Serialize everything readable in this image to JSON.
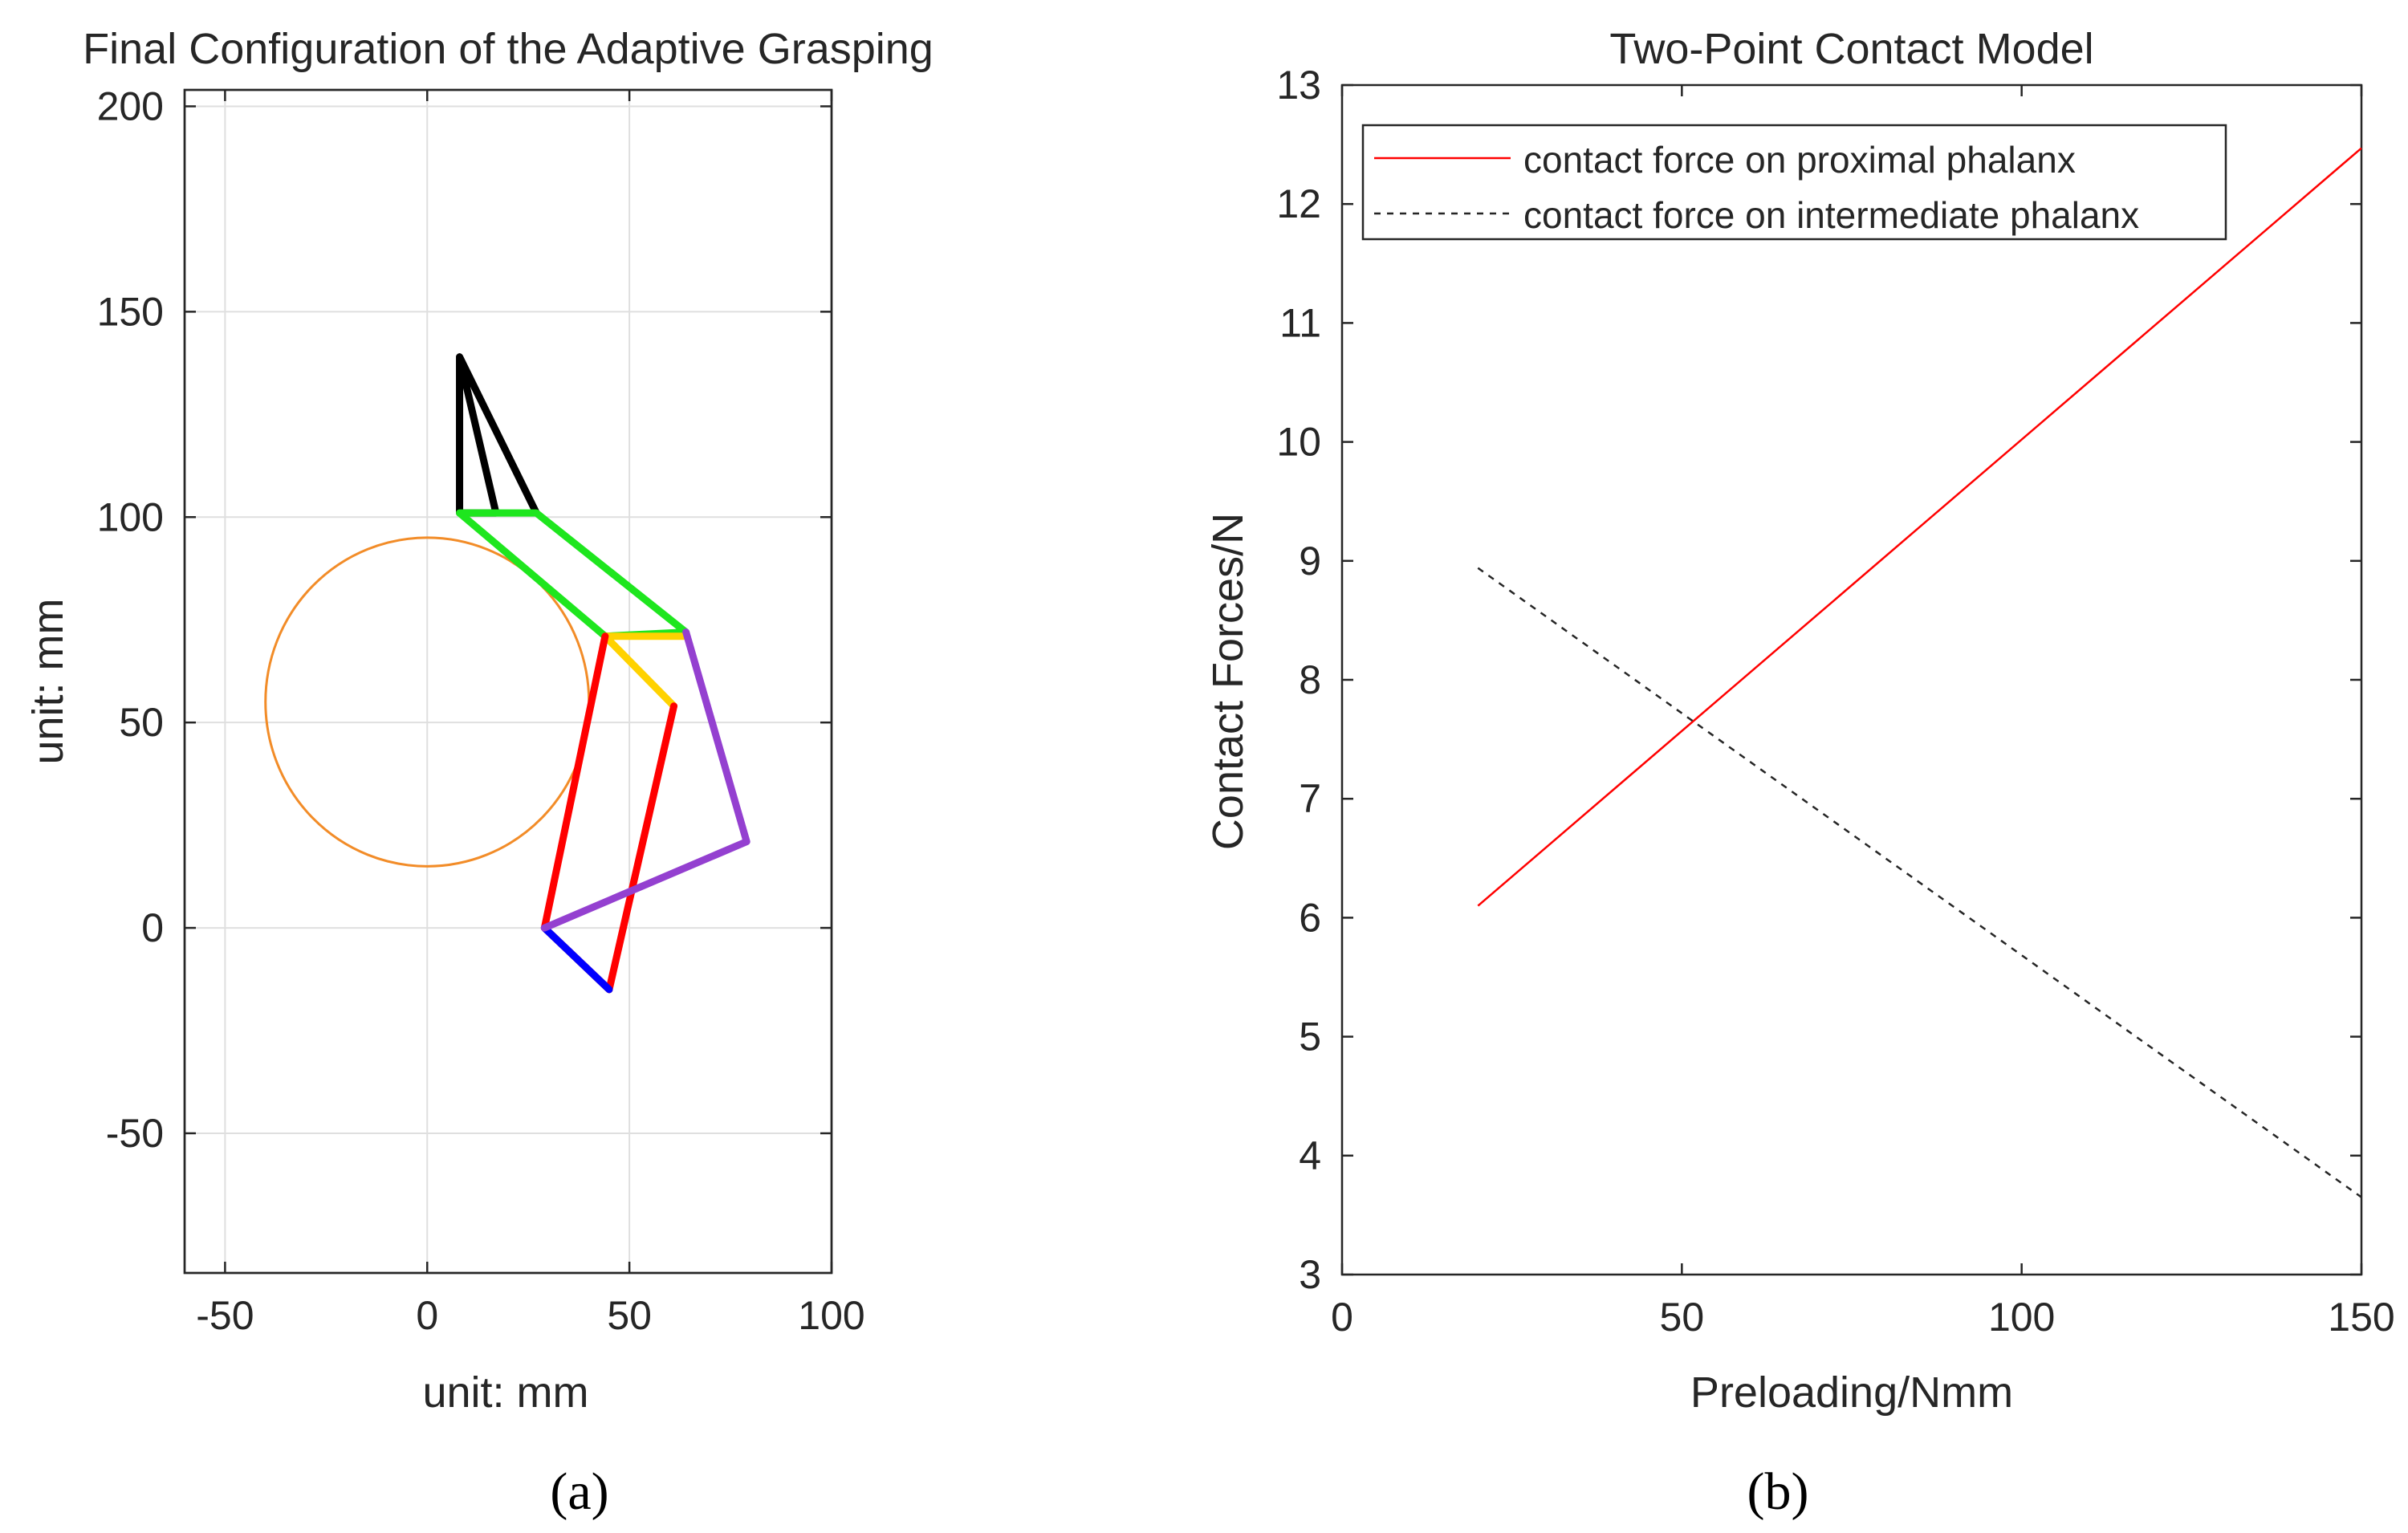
{
  "chart_data": [
    {
      "type": "line",
      "title": "Final Configuration of the Adaptive Grasping",
      "xlabel": "unit: mm",
      "ylabel": "unit: mm",
      "xlim": [
        -60,
        100
      ],
      "ylim": [
        -84,
        204
      ],
      "x_ticks": [
        -50,
        0,
        50,
        100
      ],
      "x_tick_labels": [
        "-50",
        "0",
        "50",
        "100"
      ],
      "y_ticks": [
        -50,
        0,
        50,
        100,
        150,
        200
      ],
      "y_tick_labels": [
        "-50",
        "0",
        "50",
        "100",
        "150",
        "200"
      ],
      "grid": true,
      "panel_label": "(a)",
      "circle": {
        "name": "grasped object",
        "center": [
          0,
          55
        ],
        "radius": 40,
        "color": "#f28c28"
      },
      "series": [
        {
          "name": "black link",
          "color": "#000000",
          "x": [
            8,
            8,
            17,
            8,
            27
          ],
          "y": [
            139,
            101,
            101,
            139,
            101
          ]
        },
        {
          "name": "green link",
          "color": "#1ee61e",
          "x": [
            8,
            44,
            64,
            27,
            8
          ],
          "y": [
            101,
            71,
            72,
            101,
            101
          ]
        },
        {
          "name": "yellow link",
          "color": "#ffd200",
          "x": [
            61,
            44,
            64
          ],
          "y": [
            54,
            71,
            71
          ]
        },
        {
          "name": "red link",
          "color": "#ff0000",
          "x": [
            45,
            29,
            44
          ],
          "y": [
            -15,
            0,
            71
          ]
        },
        {
          "name": "red link 2",
          "color": "#ff0000",
          "x": [
            45,
            61
          ],
          "y": [
            -15,
            54
          ]
        },
        {
          "name": "blue link",
          "color": "#0000ff",
          "x": [
            29,
            45
          ],
          "y": [
            0,
            -15
          ]
        },
        {
          "name": "purple link",
          "color": "#9440d0",
          "x": [
            29,
            79,
            64
          ],
          "y": [
            0,
            21,
            72
          ]
        }
      ]
    },
    {
      "type": "line",
      "title": "Two-Point Contact Model",
      "xlabel": "Preloading/Nmm",
      "ylabel": "Contact Forces/N",
      "xlim": [
        0,
        150
      ],
      "ylim": [
        3,
        13
      ],
      "x_ticks": [
        0,
        50,
        100,
        150
      ],
      "x_tick_labels": [
        "0",
        "50",
        "100",
        "150"
      ],
      "y_ticks": [
        3,
        4,
        5,
        6,
        7,
        8,
        9,
        10,
        11,
        12,
        13
      ],
      "y_tick_labels": [
        "3",
        "4",
        "5",
        "6",
        "7",
        "8",
        "9",
        "10",
        "11",
        "12",
        "13"
      ],
      "grid": false,
      "legend_position": "top-left",
      "panel_label": "(b)",
      "series": [
        {
          "name": "contact force on proximal phalanx",
          "color": "#ff0000",
          "style": "solid",
          "x": [
            20,
            150
          ],
          "y": [
            6.1,
            12.47
          ]
        },
        {
          "name": "contact force on intermediate phalanx",
          "color": "#262626",
          "style": "dashed",
          "x": [
            20,
            150
          ],
          "y": [
            8.94,
            3.65
          ]
        }
      ]
    }
  ]
}
